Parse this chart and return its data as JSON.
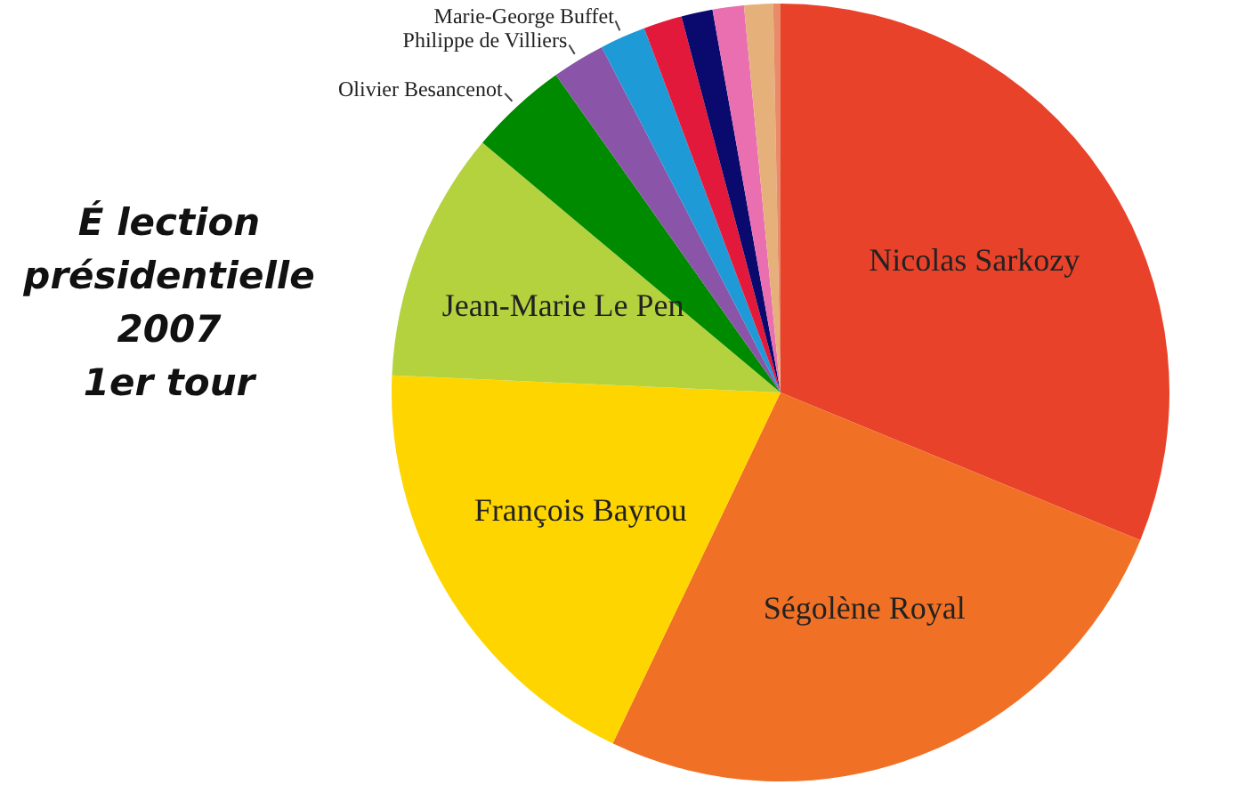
{
  "chart_data": {
    "type": "pie",
    "title": "É lection\nprésidentielle\n2007\n1er tour",
    "categories": [
      "Nicolas Sarkozy",
      "Ségolène Royal",
      "François Bayrou",
      "Jean-Marie Le Pen",
      "Olivier Besancenot",
      "Philippe de Villiers",
      "Marie-George Buffet",
      null,
      null,
      null,
      null,
      null
    ],
    "values": [
      31.2,
      25.9,
      18.6,
      10.4,
      4.1,
      2.2,
      1.9,
      1.6,
      1.3,
      1.3,
      1.2,
      0.3
    ],
    "colors": [
      "#e8432a",
      "#f07126",
      "#ffd500",
      "#b4d23e",
      "#008a00",
      "#8a55a8",
      "#1e9ad6",
      "#e3193b",
      "#0a0a6e",
      "#ea6fb0",
      "#e6b07a",
      "#e98a6a"
    ],
    "legend": false
  }
}
